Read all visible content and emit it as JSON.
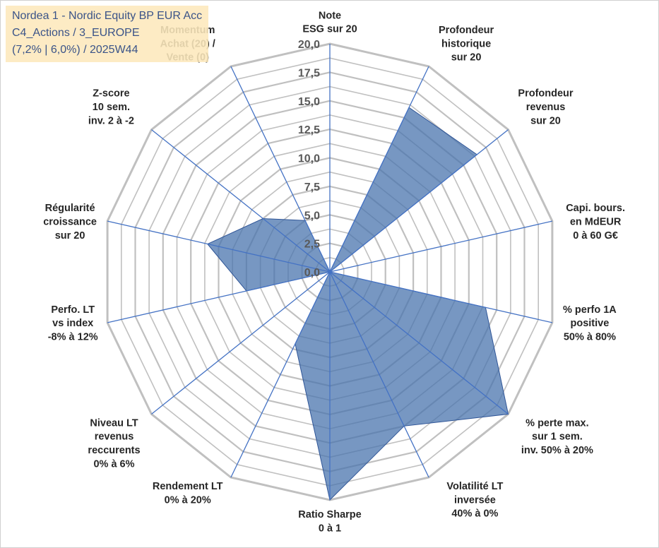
{
  "title_box": {
    "line1": "Nordea 1 - Nordic Equity BP EUR Acc",
    "line2": "C4_Actions / 3_EUROPE",
    "line3": "(7,2% | 6,0%) / 2025W44"
  },
  "colors": {
    "grid": "#c0c0c0",
    "spoke": "#4472c4",
    "fill": "#4a74ad",
    "fill_stroke": "#2f5597",
    "label": "#262626",
    "tick": "#595959",
    "title_bg": "#fde9bd",
    "title_text": "#1f3c78"
  },
  "chart_data": {
    "type": "radar",
    "title": "Nordea 1 - Nordic Equity BP EUR Acc",
    "rlim": [
      0,
      20
    ],
    "tick_step": 2.5,
    "tick_labels": [
      "0,0",
      "2,5",
      "5,0",
      "7,5",
      "10,0",
      "12,5",
      "15,0",
      "17,5",
      "20,0"
    ],
    "grid": true,
    "minor_rings": 16,
    "categories": [
      [
        "Note",
        "ESG sur 20"
      ],
      [
        "Profondeur",
        "historique",
        "sur 20"
      ],
      [
        "Profondeur",
        "revenus",
        "sur 20"
      ],
      [
        "Capi. bours.",
        "en MdEUR",
        "0 à 60 G€"
      ],
      [
        "% perfo 1A",
        "positive",
        "50% à 80%"
      ],
      [
        "% perte max.",
        "sur 1 sem.",
        "inv. 50% à 20%"
      ],
      [
        "Volatilité LT",
        "inversée",
        "40% à 0%"
      ],
      [
        "Ratio Sharpe",
        "0 à 1"
      ],
      [
        "Rendement LT",
        "0% à 20%"
      ],
      [
        "Niveau LT",
        "revenus",
        "reccurents",
        "0% à 6%"
      ],
      [
        "Perfo. LT",
        "vs index",
        "-8% à 12%"
      ],
      [
        "Régularité",
        "croissance",
        "sur 20"
      ],
      [
        "Z-score",
        "10 sem.",
        "inv. 2 à -2"
      ],
      [
        "Momentum",
        "Achat (20) /",
        "Vente (0)"
      ]
    ],
    "series": [
      {
        "name": "Nordea 1 - Nordic Equity BP EUR Acc",
        "values": [
          0.0,
          16.0,
          16.5,
          0.0,
          14.0,
          20.0,
          15.0,
          20.0,
          7.0,
          0.0,
          7.5,
          11.0,
          7.5,
          5.0
        ]
      }
    ]
  }
}
